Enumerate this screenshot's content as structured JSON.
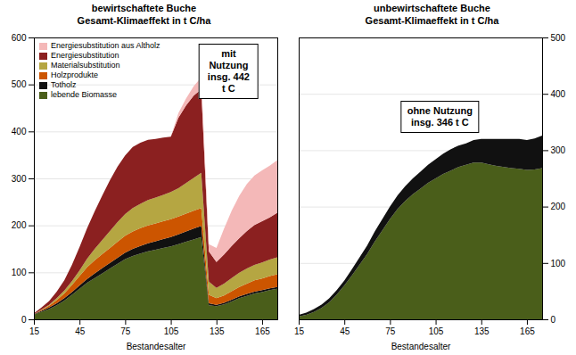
{
  "chart_data": [
    {
      "type": "area",
      "stacked": true,
      "title": "bewirtschaftete Buche",
      "subtitle": "Gesamt-Klimaeffekt in t C/ha",
      "xlabel": "Bestandesalter",
      "x": [
        15,
        20,
        25,
        30,
        35,
        40,
        45,
        50,
        55,
        60,
        65,
        70,
        75,
        80,
        85,
        90,
        95,
        100,
        105,
        110,
        115,
        120,
        125,
        130,
        135,
        140,
        145,
        150,
        155,
        160,
        165,
        170,
        175
      ],
      "xlim": [
        15,
        175
      ],
      "xticks": [
        15,
        45,
        75,
        105,
        135,
        165
      ],
      "ylim": [
        0,
        600
      ],
      "yticks": [
        0,
        100,
        200,
        300,
        400,
        500,
        600
      ],
      "grid": true,
      "legend": "upper left",
      "annotations": [
        "mit Nutzung\ninsg. 442 t C"
      ],
      "series": [
        {
          "name": "lebende Biomasse",
          "color": "#4a5e1a",
          "values": [
            10,
            16,
            22,
            30,
            40,
            52,
            65,
            78,
            88,
            98,
            108,
            118,
            128,
            135,
            140,
            145,
            148,
            152,
            155,
            160,
            165,
            170,
            175,
            30,
            28,
            32,
            38,
            45,
            50,
            55,
            58,
            62,
            65
          ]
        },
        {
          "name": "Totholz",
          "color": "#111111",
          "values": [
            1,
            2,
            3,
            4,
            5,
            6,
            7,
            8,
            10,
            11,
            12,
            13,
            14,
            15,
            16,
            17,
            18,
            19,
            20,
            21,
            22,
            23,
            24,
            4,
            3,
            3,
            4,
            4,
            4,
            4,
            4,
            4,
            4
          ]
        },
        {
          "name": "Holzprodukte",
          "color": "#cc5500",
          "values": [
            0,
            2,
            4,
            7,
            10,
            15,
            20,
            25,
            28,
            30,
            32,
            34,
            36,
            37,
            38,
            38,
            38,
            38,
            38,
            38,
            38,
            38,
            38,
            18,
            14,
            16,
            18,
            20,
            22,
            24,
            25,
            26,
            27
          ]
        },
        {
          "name": "Materialsubstitution",
          "color": "#b5a642",
          "values": [
            0,
            1,
            2,
            4,
            6,
            8,
            12,
            18,
            24,
            30,
            36,
            42,
            46,
            50,
            52,
            54,
            55,
            56,
            58,
            60,
            65,
            70,
            75,
            28,
            22,
            25,
            28,
            30,
            32,
            33,
            34,
            35,
            36
          ]
        },
        {
          "name": "Energiesubstitution",
          "color": "#8b2020",
          "values": [
            2,
            4,
            8,
            14,
            22,
            35,
            50,
            65,
            80,
            95,
            108,
            118,
            125,
            130,
            130,
            128,
            125,
            122,
            118,
            150,
            165,
            175,
            178,
            65,
            55,
            62,
            68,
            74,
            80,
            85,
            88,
            90,
            95
          ]
        },
        {
          "name": "Energiesubstitution aus Altholz",
          "color": "#f4b8b8",
          "values": [
            0,
            0,
            0,
            0,
            0,
            0,
            0,
            0,
            0,
            0,
            0,
            0,
            0,
            0,
            0,
            0,
            0,
            0,
            0,
            10,
            15,
            20,
            25,
            15,
            30,
            55,
            75,
            90,
            100,
            105,
            108,
            110,
            112
          ]
        }
      ]
    },
    {
      "type": "area",
      "stacked": true,
      "title": "unbewirtschaftete Buche",
      "subtitle": "Gesamt-Klimaeffekt in t C/ha",
      "xlabel": "Bestandesalter",
      "x": [
        15,
        20,
        25,
        30,
        35,
        40,
        45,
        50,
        55,
        60,
        65,
        70,
        75,
        80,
        85,
        90,
        95,
        100,
        105,
        110,
        115,
        120,
        125,
        130,
        135,
        140,
        145,
        150,
        155,
        160,
        165,
        170,
        175
      ],
      "xlim": [
        15,
        175
      ],
      "xticks": [
        15,
        45,
        75,
        105,
        135,
        165
      ],
      "ylim": [
        0,
        500
      ],
      "yticks": [
        0,
        100,
        200,
        300,
        400,
        500
      ],
      "grid": true,
      "annotations": [
        "ohne Nutzung\ninsg. 346 t C"
      ],
      "series": [
        {
          "color": "#4a5e1a",
          "values": [
            5,
            8,
            13,
            20,
            30,
            44,
            60,
            78,
            97,
            116,
            138,
            158,
            178,
            196,
            210,
            222,
            232,
            242,
            250,
            258,
            264,
            270,
            274,
            278,
            278,
            275,
            272,
            270,
            268,
            267,
            265,
            266,
            268
          ]
        },
        {
          "color": "#111111",
          "values": [
            3,
            4,
            5,
            6,
            7,
            8,
            9,
            11,
            13,
            15,
            18,
            20,
            22,
            24,
            26,
            28,
            30,
            32,
            34,
            36,
            38,
            38,
            38,
            40,
            42,
            45,
            48,
            50,
            52,
            53,
            53,
            55,
            58
          ]
        }
      ]
    }
  ]
}
